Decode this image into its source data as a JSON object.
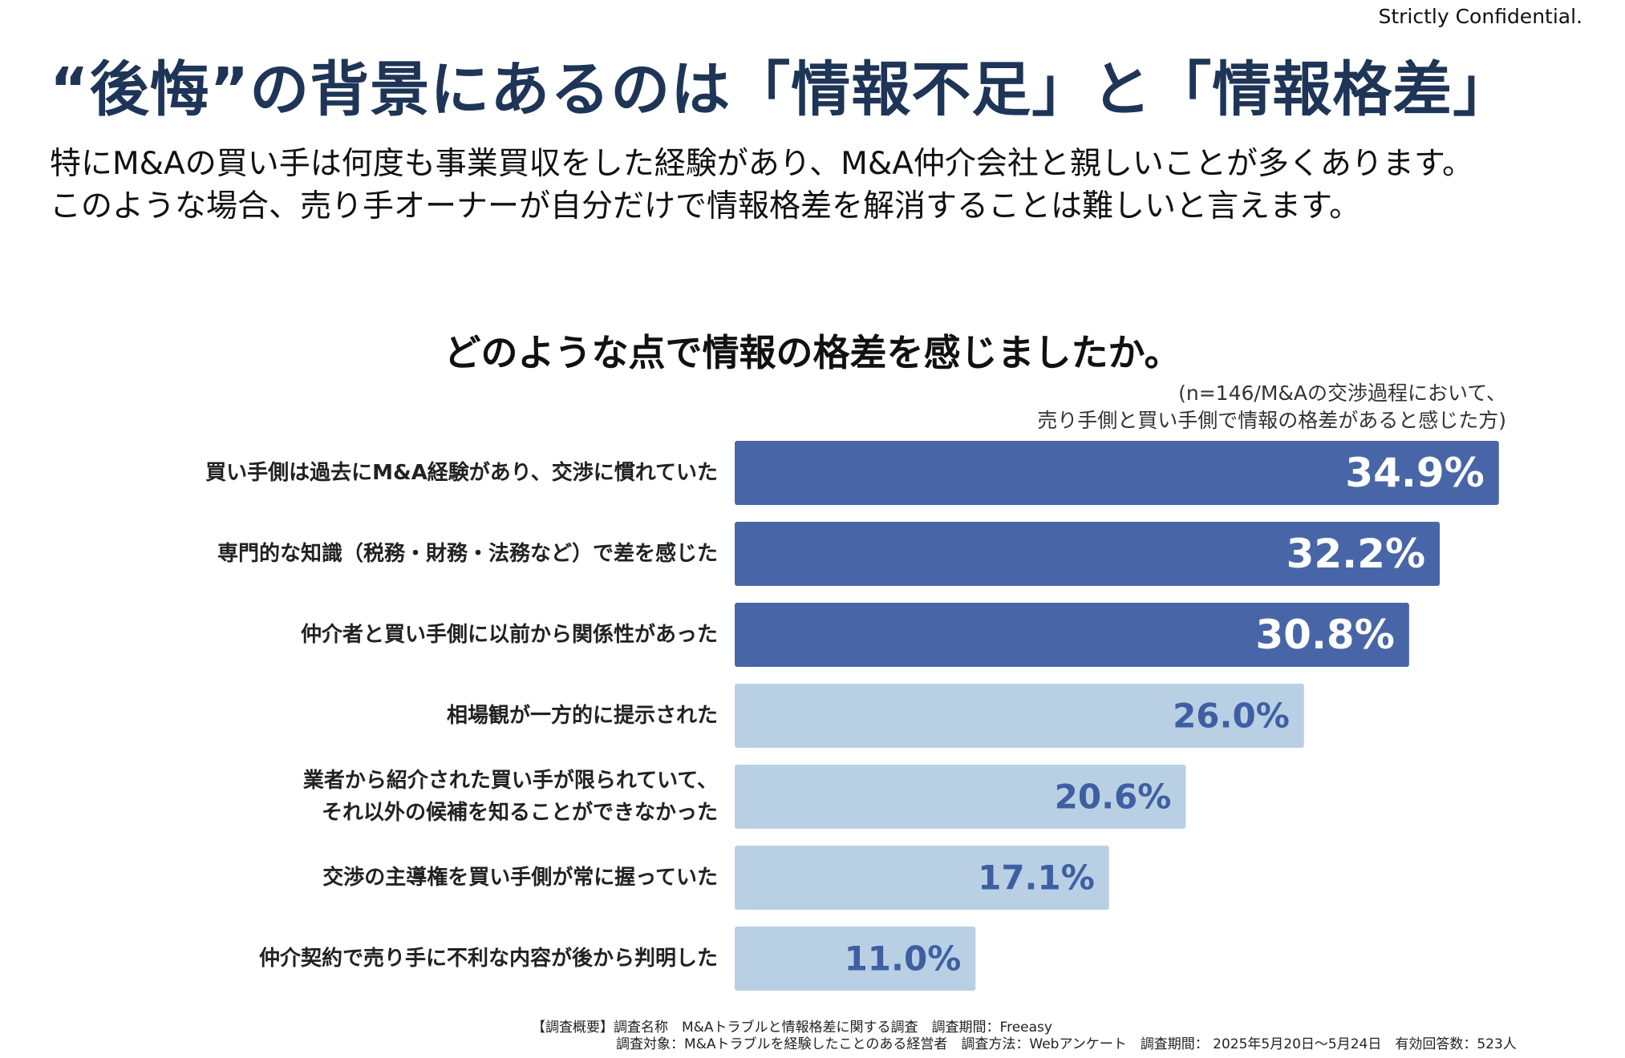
{
  "confidential": "Strictly Confidential.",
  "headline": "“後悔”の背景にあるのは「情報不足」と「情報格差」",
  "body_lines": [
    "特にM&Aの買い手は何度も事業買収をした経験があり、M&A仲介会社と親しいことが多くあります。",
    "このような場合、売り手オーナーが自分だけで情報格差を解消することは難しいと言えます。"
  ],
  "chart_data": {
    "type": "bar",
    "orientation": "horizontal",
    "title": "どのような点で情報の格差を感じましたか。",
    "note_lines": [
      "(n=146/M&Aの交渉過程において、",
      "売り手側と買い手側で情報の格差があると感じた方)"
    ],
    "unit": "%",
    "categories": [
      [
        "買い手側は過去にM&A経験があり、交渉に慣れていた"
      ],
      [
        "専門的な知識（税務・財務・法務など）で差を感じた"
      ],
      [
        "仲介者と買い手側に以前から関係性があった"
      ],
      [
        "相場観が一方的に提示された"
      ],
      [
        "業者から紹介された買い手が限られていて、",
        "それ以外の候補を知ることができなかった"
      ],
      [
        "交渉の主導権を買い手側が常に握っていた"
      ],
      [
        "仲介契約で売り手に不利な内容が後から判明した"
      ]
    ],
    "values": [
      34.9,
      32.2,
      30.8,
      26.0,
      20.6,
      17.1,
      11.0
    ],
    "value_labels": [
      "34.9%",
      "32.2%",
      "30.8%",
      "26.0%",
      "20.6%",
      "17.1%",
      "11.0%"
    ],
    "highlight_count": 3,
    "colors": {
      "highlight_bar": "#4866a7",
      "highlight_text": "#ffffff",
      "normal_bar": "#b9d0e4",
      "normal_text": "#3f5fa3"
    },
    "legend": "none",
    "grid": false
  },
  "footer_lines": [
    "【調査概要】調査名称　M&Aトラブルと情報格差に関する調査　調査期間：Freeasy",
    "調査対象：M&Aトラブルを経験したことのある経営者　調査方法：Webアンケート　調査期間： 2025年5月20日〜5月24日　有効回答数：523人"
  ]
}
